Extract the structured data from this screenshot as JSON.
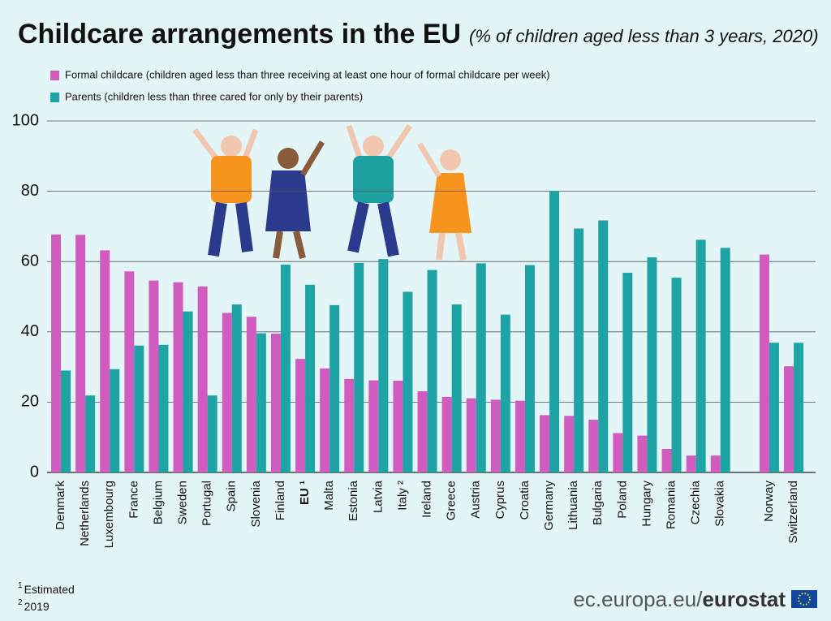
{
  "chart_data": {
    "type": "bar",
    "title": "Childcare arrangements in the EU",
    "subtitle": "(% of children aged less than 3 years, 2020)",
    "categories": [
      "Denmark",
      "Netherlands",
      "Luxembourg",
      "France",
      "Belgium",
      "Sweden",
      "Portugal",
      "Spain",
      "Slovenia",
      "Finland",
      "EU ¹",
      "Malta",
      "Estonia",
      "Latvia",
      "Italy ²",
      "Ireland",
      "Greece",
      "Austria",
      "Cyprus",
      "Croatia",
      "Germany",
      "Lithuania",
      "Bulgaria",
      "Poland",
      "Hungary",
      "Romania",
      "Czechia",
      "Slovakia",
      null,
      "Norway",
      "Switzerland"
    ],
    "series": [
      {
        "name": "Formal childcare (children aged less than three receiving at least one hour of formal childcare per week)",
        "color": "#d05cc0",
        "values": [
          67.7,
          67.6,
          63.2,
          57.2,
          54.6,
          54.1,
          52.9,
          45.4,
          44.3,
          39.5,
          32.3,
          29.6,
          26.6,
          26.2,
          26.1,
          23.1,
          21.5,
          21.1,
          20.7,
          20.4,
          16.3,
          16.1,
          15.0,
          11.2,
          10.5,
          6.7,
          4.8,
          4.8,
          null,
          62.0,
          30.2
        ]
      },
      {
        "name": "Parents (children less than three cared for only by their parents)",
        "color": "#1ea4a4",
        "values": [
          29.0,
          21.9,
          29.4,
          36.1,
          36.3,
          45.8,
          21.9,
          47.8,
          39.6,
          59.1,
          53.4,
          47.6,
          59.6,
          60.7,
          51.4,
          57.6,
          47.8,
          59.5,
          44.9,
          59.0,
          80.1,
          69.4,
          71.7,
          56.8,
          61.2,
          55.4,
          66.2,
          63.9,
          null,
          36.9,
          36.9
        ]
      }
    ],
    "ylim": [
      0,
      100
    ],
    "yticks": [
      0,
      20,
      40,
      60,
      80,
      100
    ],
    "grid": true,
    "legend": "top-left"
  },
  "footnotes": [
    {
      "mark": "1",
      "text": "Estimated"
    },
    {
      "mark": "2",
      "text": "2019"
    }
  ],
  "source": {
    "domain": "ec.europa.eu/",
    "brand": "eurostat"
  }
}
